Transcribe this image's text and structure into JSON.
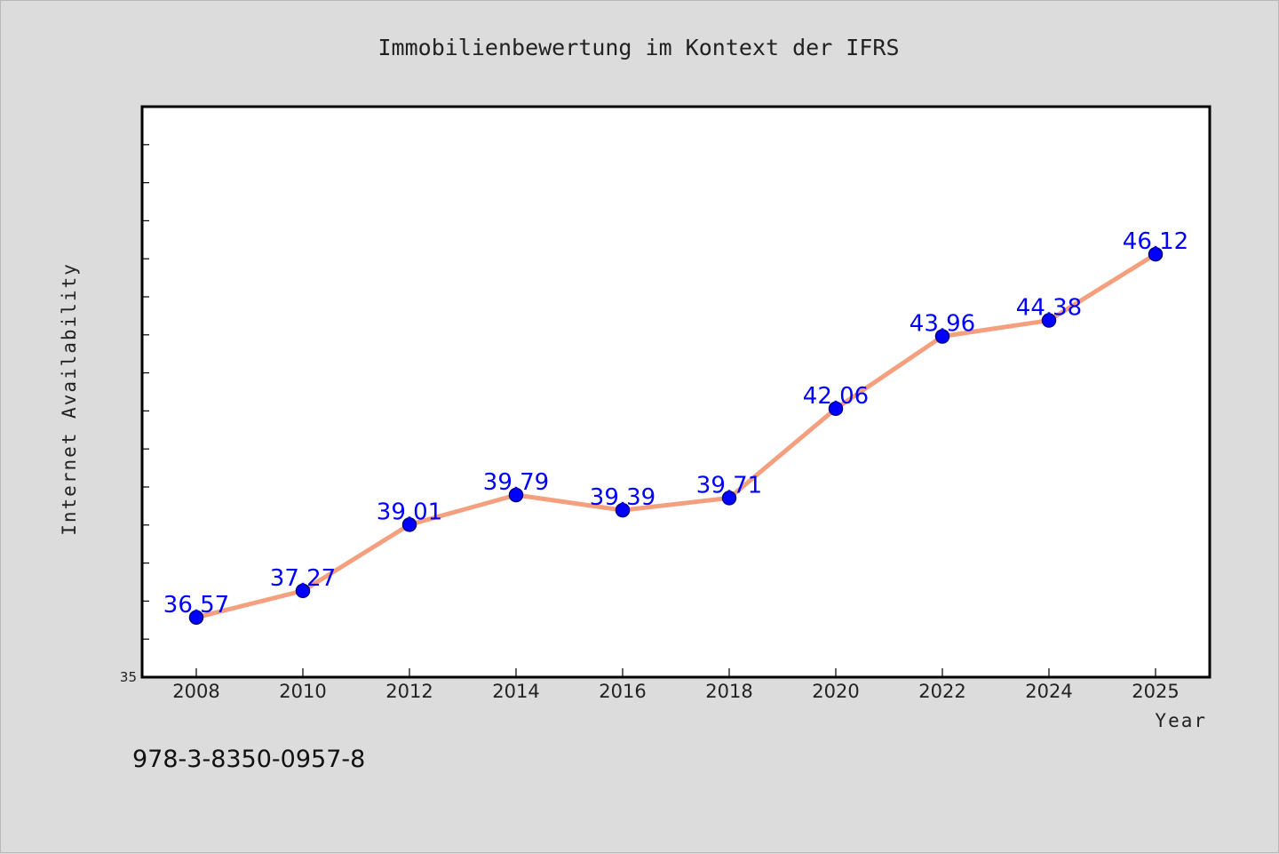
{
  "chart_data": {
    "type": "line",
    "title": "Immobilienbewertung im Kontext der IFRS",
    "xlabel": "Year",
    "ylabel": "Internet Availability",
    "categories": [
      "2008",
      "2010",
      "2012",
      "2014",
      "2016",
      "2018",
      "2020",
      "2022",
      "2024",
      "2025"
    ],
    "series": [
      {
        "values": [
          36.57,
          37.27,
          39.01,
          39.79,
          39.39,
          39.71,
          42.06,
          43.96,
          44.38,
          46.12
        ],
        "data_labels": [
          "36.57",
          "37.27",
          "39.01",
          "39.79",
          "39.39",
          "39.71",
          "42.06",
          "43.96",
          "44.38",
          "46.12"
        ]
      }
    ],
    "y_tick_labels": [
      "35"
    ],
    "ylim": [
      35,
      50
    ],
    "y_minor_ticks": [
      36,
      37,
      38,
      39,
      40,
      41,
      42,
      43,
      44,
      45,
      46,
      47,
      48,
      49
    ],
    "grid": false,
    "legend": "none",
    "colors": {
      "line": "#f4a07f",
      "marker": "#0000ff",
      "marker_edge": "#000080",
      "data_label": "#0000ff",
      "plot_bg": "#ffffff",
      "figure_bg": "#dcdcdc"
    }
  },
  "footer": {
    "isbn": "978-3-8350-0957-8"
  }
}
